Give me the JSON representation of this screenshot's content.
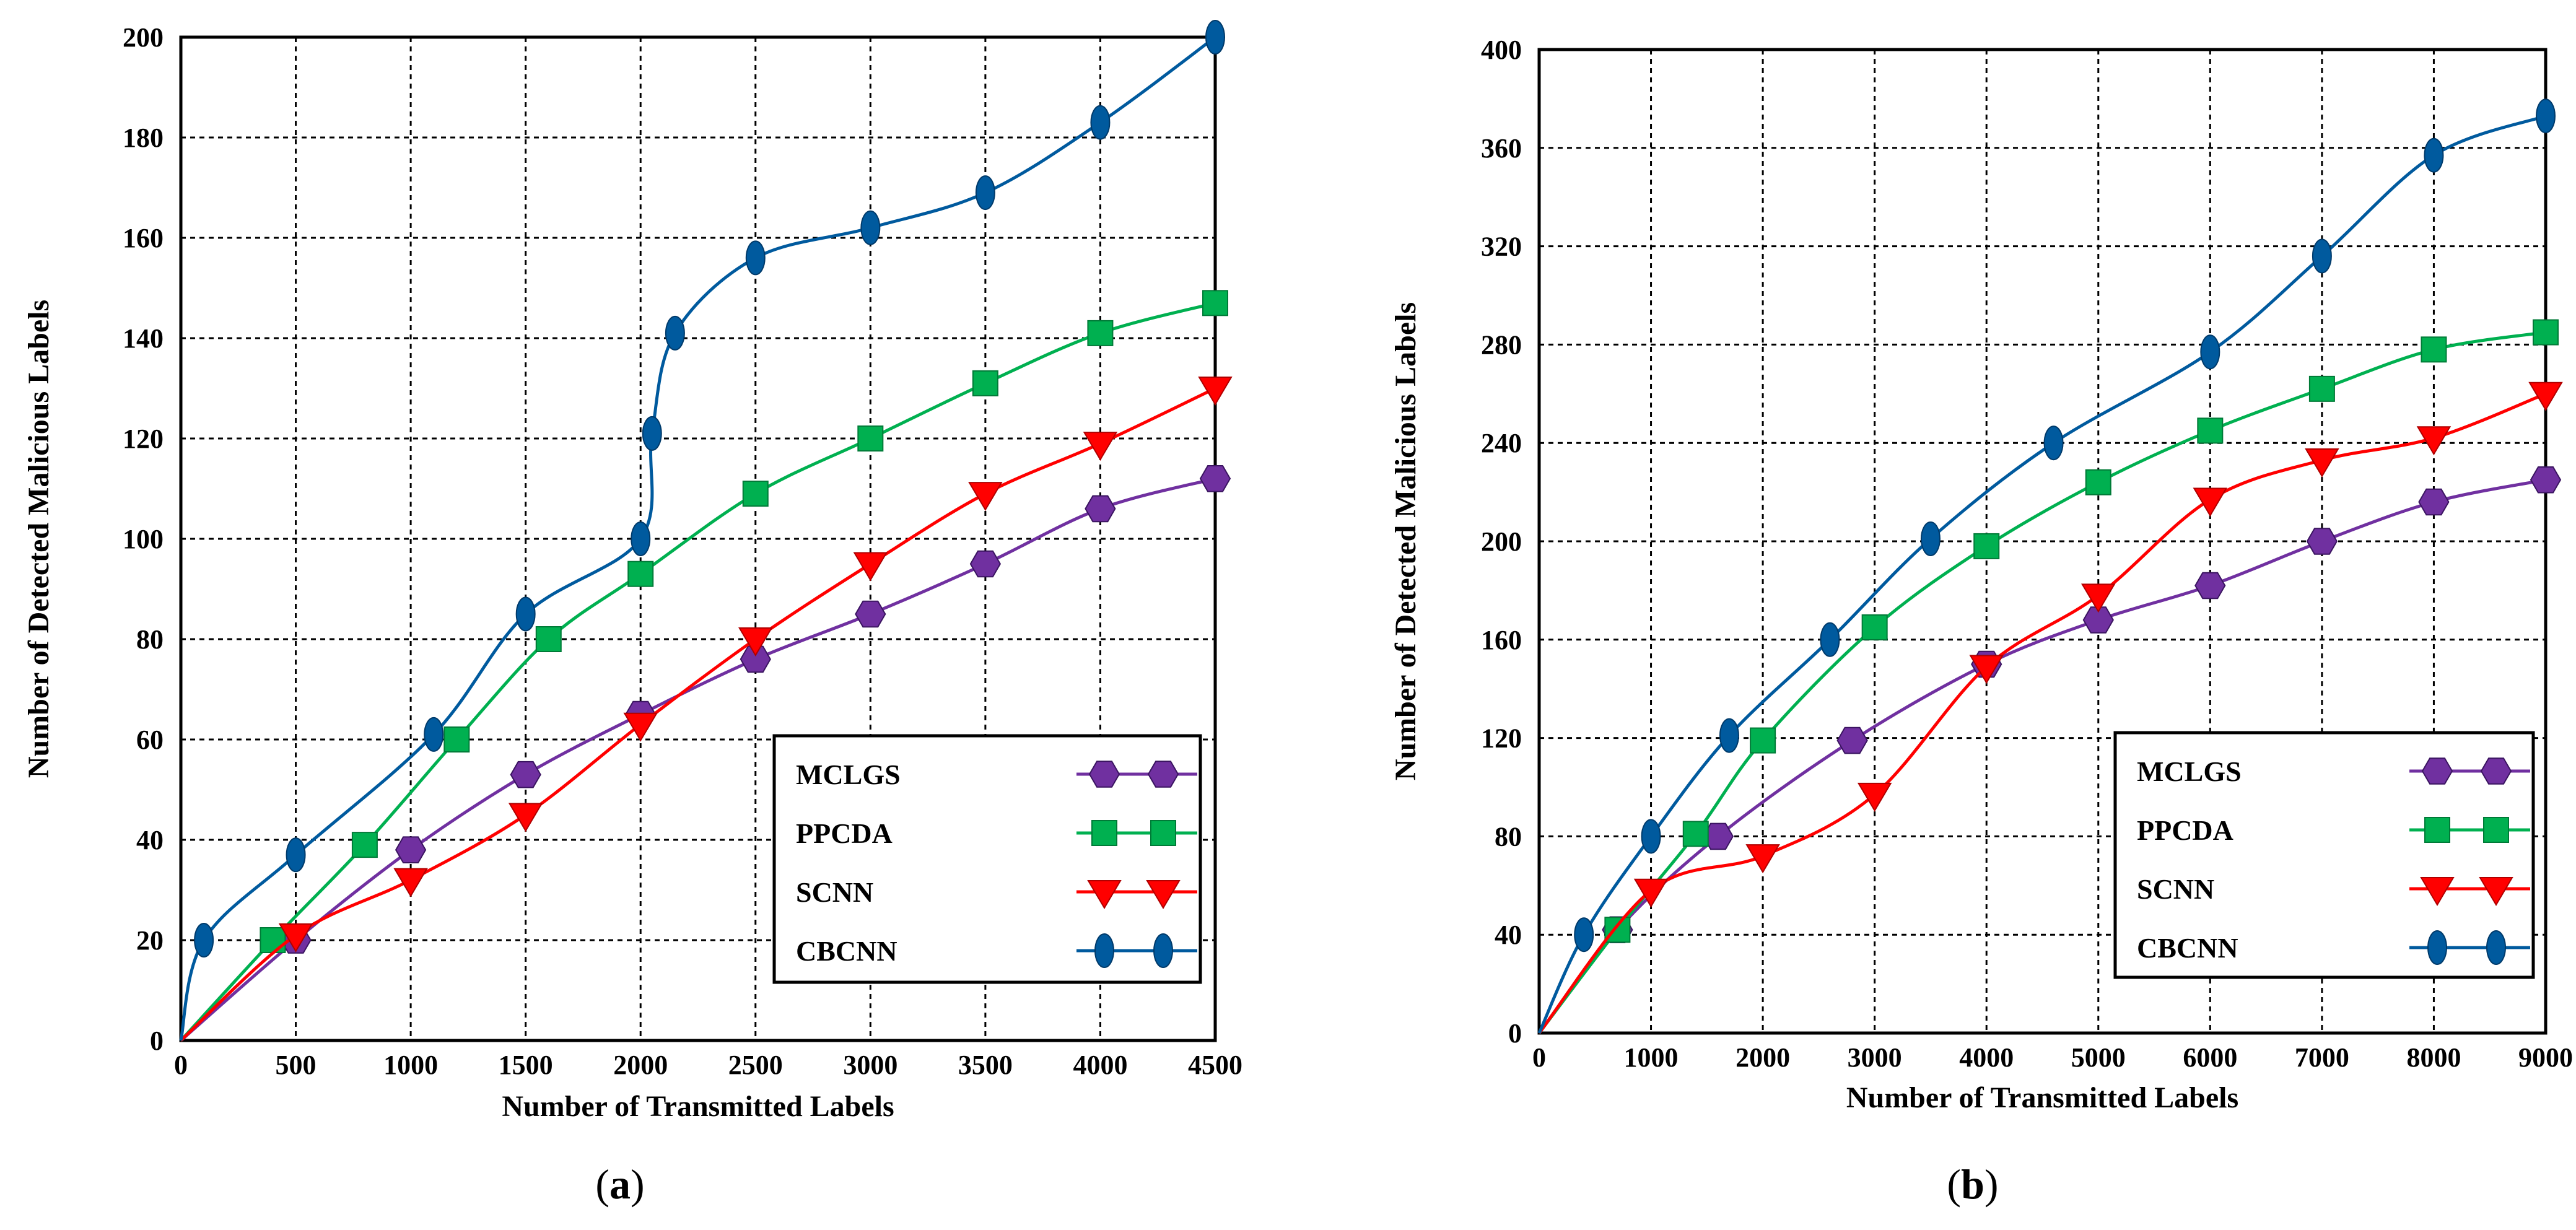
{
  "chart_data": [
    {
      "type": "line",
      "panel_label": "a",
      "xlabel": "Number of Transmitted Labels",
      "ylabel": "Number of Detected Malicious Labels",
      "xlim": [
        0,
        4500
      ],
      "ylim": [
        0,
        200
      ],
      "xticks": [
        0,
        500,
        1000,
        1500,
        2000,
        2500,
        3000,
        3500,
        4000,
        4500
      ],
      "yticks": [
        0,
        20,
        40,
        60,
        80,
        100,
        120,
        140,
        160,
        180,
        200
      ],
      "grid": true,
      "legend_position": "bottom-right",
      "series": [
        {
          "name": "MCLGS",
          "color": "#7030A0",
          "marker": "hexagon",
          "x": [
            0,
            500,
            1000,
            1500,
            2000,
            2500,
            3000,
            3500,
            4000,
            4500
          ],
          "y": [
            0,
            20,
            38,
            53,
            65,
            76,
            85,
            95,
            106,
            112
          ]
        },
        {
          "name": "PPCDA",
          "color": "#00B050",
          "marker": "square",
          "x": [
            0,
            400,
            800,
            1200,
            1600,
            2000,
            2500,
            3000,
            3500,
            4000,
            4500
          ],
          "y": [
            0,
            20,
            39,
            60,
            80,
            93,
            109,
            120,
            131,
            141,
            147
          ]
        },
        {
          "name": "SCNN",
          "color": "#FF0000",
          "marker": "triangle-down",
          "x": [
            0,
            500,
            1000,
            1500,
            2000,
            2500,
            3000,
            3500,
            4000,
            4500
          ],
          "y": [
            0,
            21,
            32,
            45,
            63,
            80,
            95,
            109,
            119,
            130
          ]
        },
        {
          "name": "CBCNN",
          "color": "#005A9E",
          "marker": "ellipse",
          "x": [
            0,
            100,
            500,
            1100,
            1500,
            2000,
            2050,
            2150,
            2500,
            3000,
            3500,
            4000,
            4500
          ],
          "y": [
            0,
            20,
            37,
            61,
            85,
            100,
            121,
            141,
            156,
            162,
            169,
            183,
            200
          ]
        }
      ]
    },
    {
      "type": "line",
      "panel_label": "b",
      "xlabel": "Number of Transmitted Labels",
      "ylabel": "Number of Detected Malicious Labels",
      "xlim": [
        0,
        9000
      ],
      "ylim": [
        0,
        400
      ],
      "xticks": [
        0,
        1000,
        2000,
        3000,
        4000,
        5000,
        6000,
        7000,
        8000,
        9000
      ],
      "yticks": [
        0,
        40,
        80,
        120,
        160,
        200,
        240,
        280,
        320,
        360,
        400
      ],
      "grid": true,
      "legend_position": "bottom-right",
      "series": [
        {
          "name": "MCLGS",
          "color": "#7030A0",
          "marker": "hexagon",
          "x": [
            0,
            700,
            1600,
            2800,
            4000,
            5000,
            6000,
            7000,
            8000,
            9000
          ],
          "y": [
            0,
            42,
            80,
            119,
            150,
            168,
            182,
            200,
            216,
            225
          ]
        },
        {
          "name": "PPCDA",
          "color": "#00B050",
          "marker": "square",
          "x": [
            0,
            700,
            1400,
            2000,
            3000,
            4000,
            5000,
            6000,
            7000,
            8000,
            9000
          ],
          "y": [
            0,
            42,
            81,
            119,
            165,
            198,
            224,
            245,
            262,
            278,
            285
          ]
        },
        {
          "name": "SCNN",
          "color": "#FF0000",
          "marker": "triangle-down",
          "x": [
            0,
            1000,
            2000,
            3000,
            4000,
            5000,
            6000,
            7000,
            8000,
            9000
          ],
          "y": [
            0,
            58,
            72,
            97,
            149,
            178,
            217,
            233,
            242,
            260
          ]
        },
        {
          "name": "CBCNN",
          "color": "#005A9E",
          "marker": "ellipse",
          "x": [
            0,
            400,
            1000,
            1700,
            2600,
            3500,
            4600,
            6000,
            7000,
            8000,
            9000
          ],
          "y": [
            0,
            40,
            80,
            121,
            160,
            201,
            240,
            277,
            316,
            357,
            373
          ]
        }
      ]
    }
  ]
}
